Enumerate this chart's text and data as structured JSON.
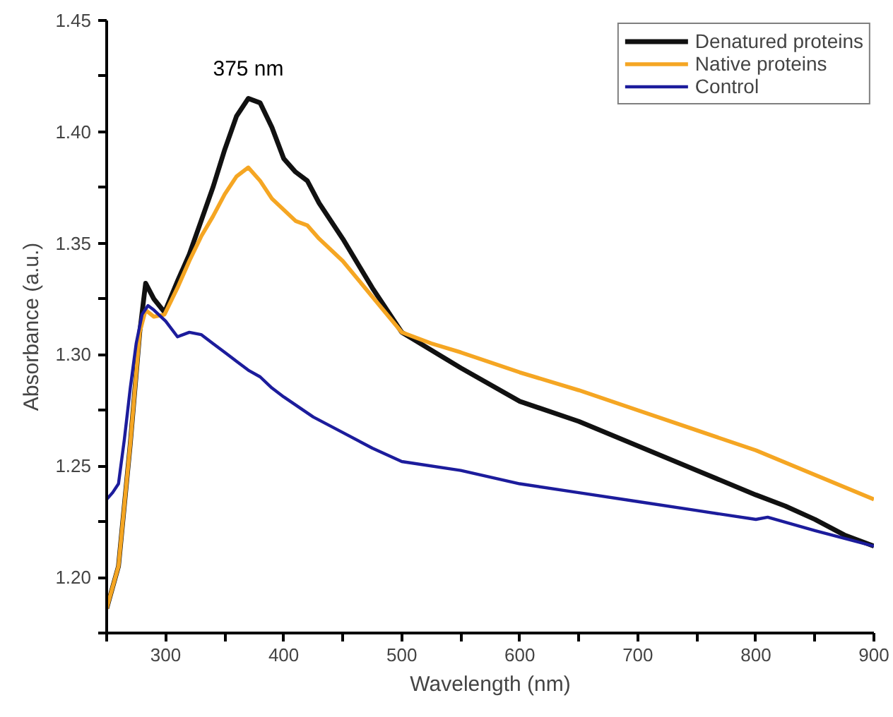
{
  "chart_data": {
    "type": "line",
    "xlabel": "Wavelength (nm)",
    "ylabel": "Absorbance (a.u.)",
    "xlim": [
      250,
      900
    ],
    "ylim": [
      1.175,
      1.45
    ],
    "xticks": [
      {
        "value": 250,
        "label": null
      },
      300,
      {
        "value": 350,
        "label": null
      },
      400,
      {
        "value": 450,
        "label": null
      },
      500,
      {
        "value": 550,
        "label": null
      },
      600,
      {
        "value": 650,
        "label": null
      },
      700,
      {
        "value": 750,
        "label": null
      },
      800,
      {
        "value": 850,
        "label": null
      },
      900
    ],
    "yticks": [
      {
        "value": 1.175,
        "label": null
      },
      {
        "value": 1.2,
        "label": "1.20"
      },
      {
        "value": 1.225,
        "label": null
      },
      1.25,
      {
        "value": 1.275,
        "label": null
      },
      {
        "value": 1.3,
        "label": "1.30"
      },
      {
        "value": 1.325,
        "label": null
      },
      1.35,
      {
        "value": 1.375,
        "label": null
      },
      {
        "value": 1.4,
        "label": "1.40"
      },
      {
        "value": 1.425,
        "label": null
      },
      1.45
    ],
    "grid": false,
    "legend": "top right",
    "marker": "none",
    "line_style": "solid",
    "annotations": [
      {
        "text": "375 nm",
        "x": 370,
        "y": 1.415
      }
    ],
    "series": [
      {
        "name": "Denatured proteins",
        "color": "#111111",
        "x": [
          250,
          260,
          270,
          278,
          283,
          290,
          299,
          310,
          320,
          330,
          340,
          350,
          360,
          370,
          380,
          390,
          400,
          410,
          420,
          430,
          440,
          450,
          475,
          500,
          525,
          550,
          600,
          650,
          700,
          750,
          800,
          825,
          850,
          875,
          900
        ],
        "values": [
          1.186,
          1.205,
          1.26,
          1.31,
          1.332,
          1.325,
          1.319,
          1.333,
          1.345,
          1.36,
          1.375,
          1.392,
          1.407,
          1.415,
          1.413,
          1.402,
          1.388,
          1.382,
          1.378,
          1.368,
          1.36,
          1.352,
          1.33,
          1.31,
          1.302,
          1.294,
          1.279,
          1.27,
          1.259,
          1.248,
          1.237,
          1.232,
          1.226,
          1.219,
          1.214
        ]
      },
      {
        "name": "Native proteins",
        "color": "#f5a623",
        "x": [
          250,
          260,
          270,
          278,
          283,
          290,
          299,
          310,
          320,
          330,
          340,
          350,
          360,
          370,
          380,
          390,
          400,
          410,
          420,
          430,
          450,
          475,
          500,
          525,
          550,
          600,
          650,
          700,
          750,
          800,
          850,
          900
        ],
        "values": [
          1.186,
          1.205,
          1.26,
          1.31,
          1.32,
          1.317,
          1.318,
          1.33,
          1.342,
          1.353,
          1.362,
          1.372,
          1.38,
          1.384,
          1.378,
          1.37,
          1.365,
          1.36,
          1.358,
          1.352,
          1.342,
          1.326,
          1.31,
          1.305,
          1.301,
          1.292,
          1.284,
          1.275,
          1.266,
          1.257,
          1.246,
          1.235
        ]
      },
      {
        "name": "Control",
        "color": "#1c1c9c",
        "x": [
          250,
          255,
          260,
          265,
          270,
          275,
          280,
          285,
          290,
          300,
          310,
          320,
          330,
          340,
          350,
          360,
          370,
          380,
          390,
          400,
          425,
          450,
          475,
          500,
          550,
          600,
          650,
          700,
          750,
          800,
          810,
          850,
          900
        ],
        "values": [
          1.235,
          1.238,
          1.242,
          1.262,
          1.285,
          1.305,
          1.318,
          1.322,
          1.32,
          1.315,
          1.308,
          1.31,
          1.309,
          1.305,
          1.301,
          1.297,
          1.293,
          1.29,
          1.285,
          1.281,
          1.272,
          1.265,
          1.258,
          1.252,
          1.248,
          1.242,
          1.238,
          1.234,
          1.23,
          1.226,
          1.227,
          1.221,
          1.214
        ]
      }
    ]
  }
}
